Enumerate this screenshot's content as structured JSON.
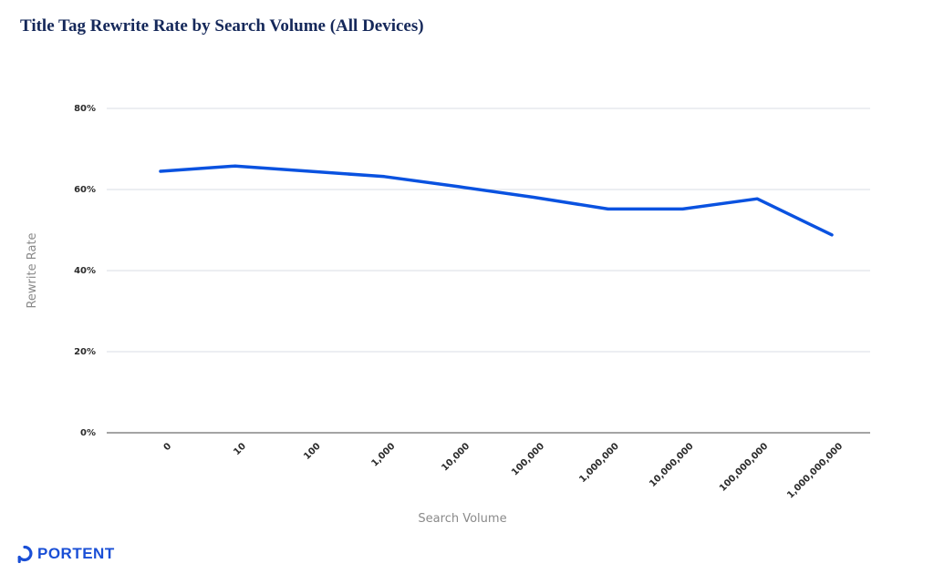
{
  "brand": {
    "name": "PORTENT",
    "color": "#1a4fd6"
  },
  "chart_data": {
    "type": "line",
    "title": "Title Tag Rewrite Rate by Search Volume (All Devices)",
    "xlabel": "Search Volume",
    "ylabel": "Rewrite Rate",
    "categories": [
      "0",
      "10",
      "100",
      "1,000",
      "10,000",
      "100,000",
      "1,000,000",
      "10,000,000",
      "100,000,000",
      "1,000,000,000"
    ],
    "series": [
      {
        "name": "Rewrite Rate",
        "color": "#0a52e0",
        "values": [
          64.5,
          65.8,
          64.5,
          63.2,
          60.7,
          58.1,
          55.2,
          55.2,
          57.7,
          48.8
        ]
      }
    ],
    "ylim": [
      0,
      80
    ],
    "yticks": [
      0,
      20,
      40,
      60,
      80
    ],
    "ytick_labels": [
      "0%",
      "20%",
      "40%",
      "60%",
      "80%"
    ],
    "grid": true,
    "legend": "none"
  }
}
